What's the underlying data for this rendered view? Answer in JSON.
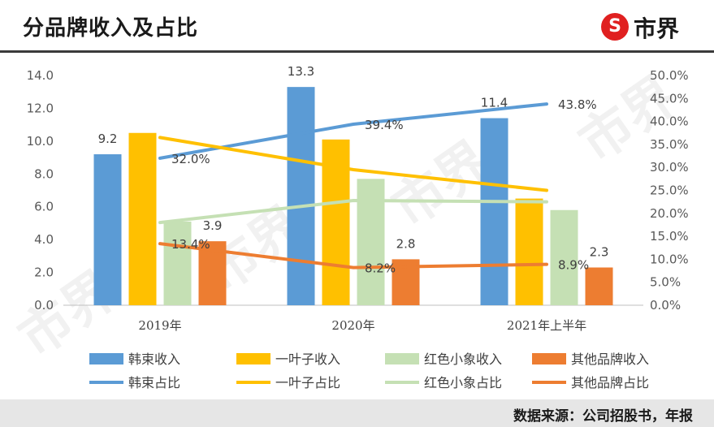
{
  "header": {
    "title": "分品牌收入及占比",
    "logo_text": "市界",
    "logo_icon": "s-circle-logo"
  },
  "footer": {
    "source": "数据来源：公司招股书，年报"
  },
  "colors": {
    "hanshu": "#5B9BD5",
    "yiyezi": "#FFC000",
    "hongse": "#C5E0B4",
    "qita": "#ED7D31"
  },
  "chart_data": {
    "type": "bar",
    "categories": [
      "2019年",
      "2020年",
      "2021年上半年"
    ],
    "y_left": {
      "ylim": [
        0,
        14
      ],
      "ticks": [
        "0.0",
        "2.0",
        "4.0",
        "6.0",
        "8.0",
        "10.0",
        "12.0",
        "14.0"
      ]
    },
    "y_right": {
      "ylim": [
        0,
        50
      ],
      "ticks": [
        "0.0%",
        "5.0%",
        "10.0%",
        "15.0%",
        "20.0%",
        "25.0%",
        "30.0%",
        "35.0%",
        "40.0%",
        "45.0%",
        "50.0%"
      ]
    },
    "series": [
      {
        "name": "韩束收入",
        "kind": "bar",
        "color": "#5B9BD5",
        "values": [
          9.2,
          13.3,
          11.4
        ],
        "labels": [
          "9.2",
          "13.3",
          "11.4"
        ]
      },
      {
        "name": "一叶子收入",
        "kind": "bar",
        "color": "#FFC000",
        "values": [
          10.5,
          10.1,
          6.5
        ],
        "labels": [
          "",
          "",
          ""
        ]
      },
      {
        "name": "红色小象收入",
        "kind": "bar",
        "color": "#C5E0B4",
        "values": [
          5.1,
          7.7,
          5.8
        ],
        "labels": [
          "",
          "",
          ""
        ]
      },
      {
        "name": "其他品牌收入",
        "kind": "bar",
        "color": "#ED7D31",
        "values": [
          3.9,
          2.8,
          2.3
        ],
        "labels": [
          "3.9",
          "2.8",
          "2.3"
        ]
      },
      {
        "name": "韩束占比",
        "kind": "line",
        "color": "#5B9BD5",
        "values": [
          32.0,
          39.4,
          43.8
        ],
        "labels": [
          "32.0%",
          "39.4%",
          "43.8%"
        ]
      },
      {
        "name": "一叶子占比",
        "kind": "line",
        "color": "#FFC000",
        "values": [
          36.5,
          29.5,
          25.0
        ],
        "labels": [
          "",
          "",
          ""
        ]
      },
      {
        "name": "红色小象占比",
        "kind": "line",
        "color": "#C5E0B4",
        "values": [
          18.0,
          22.8,
          22.5
        ],
        "labels": [
          "",
          "",
          ""
        ]
      },
      {
        "name": "其他品牌占比",
        "kind": "line",
        "color": "#ED7D31",
        "values": [
          13.4,
          8.2,
          8.9
        ],
        "labels": [
          "13.4%",
          "8.2%",
          "8.9%"
        ]
      }
    ],
    "legend": "bottom",
    "grid": false
  }
}
